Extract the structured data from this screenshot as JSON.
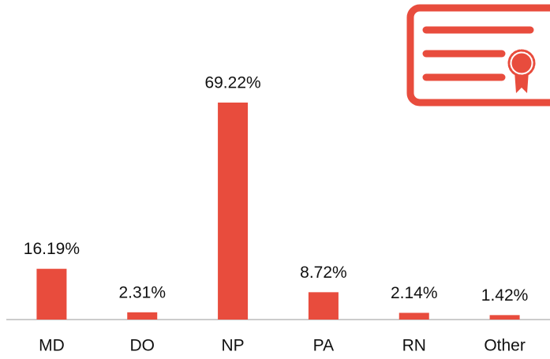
{
  "chart_data": {
    "type": "bar",
    "categories": [
      "MD",
      "DO",
      "NP",
      "PA",
      "RN",
      "Other"
    ],
    "values": [
      16.19,
      2.31,
      69.22,
      8.72,
      2.14,
      1.42
    ],
    "value_labels": [
      "16.19%",
      "2.31%",
      "69.22%",
      "8.72%",
      "2.14%",
      "1.42%"
    ],
    "color": "#e84c3d"
  }
}
